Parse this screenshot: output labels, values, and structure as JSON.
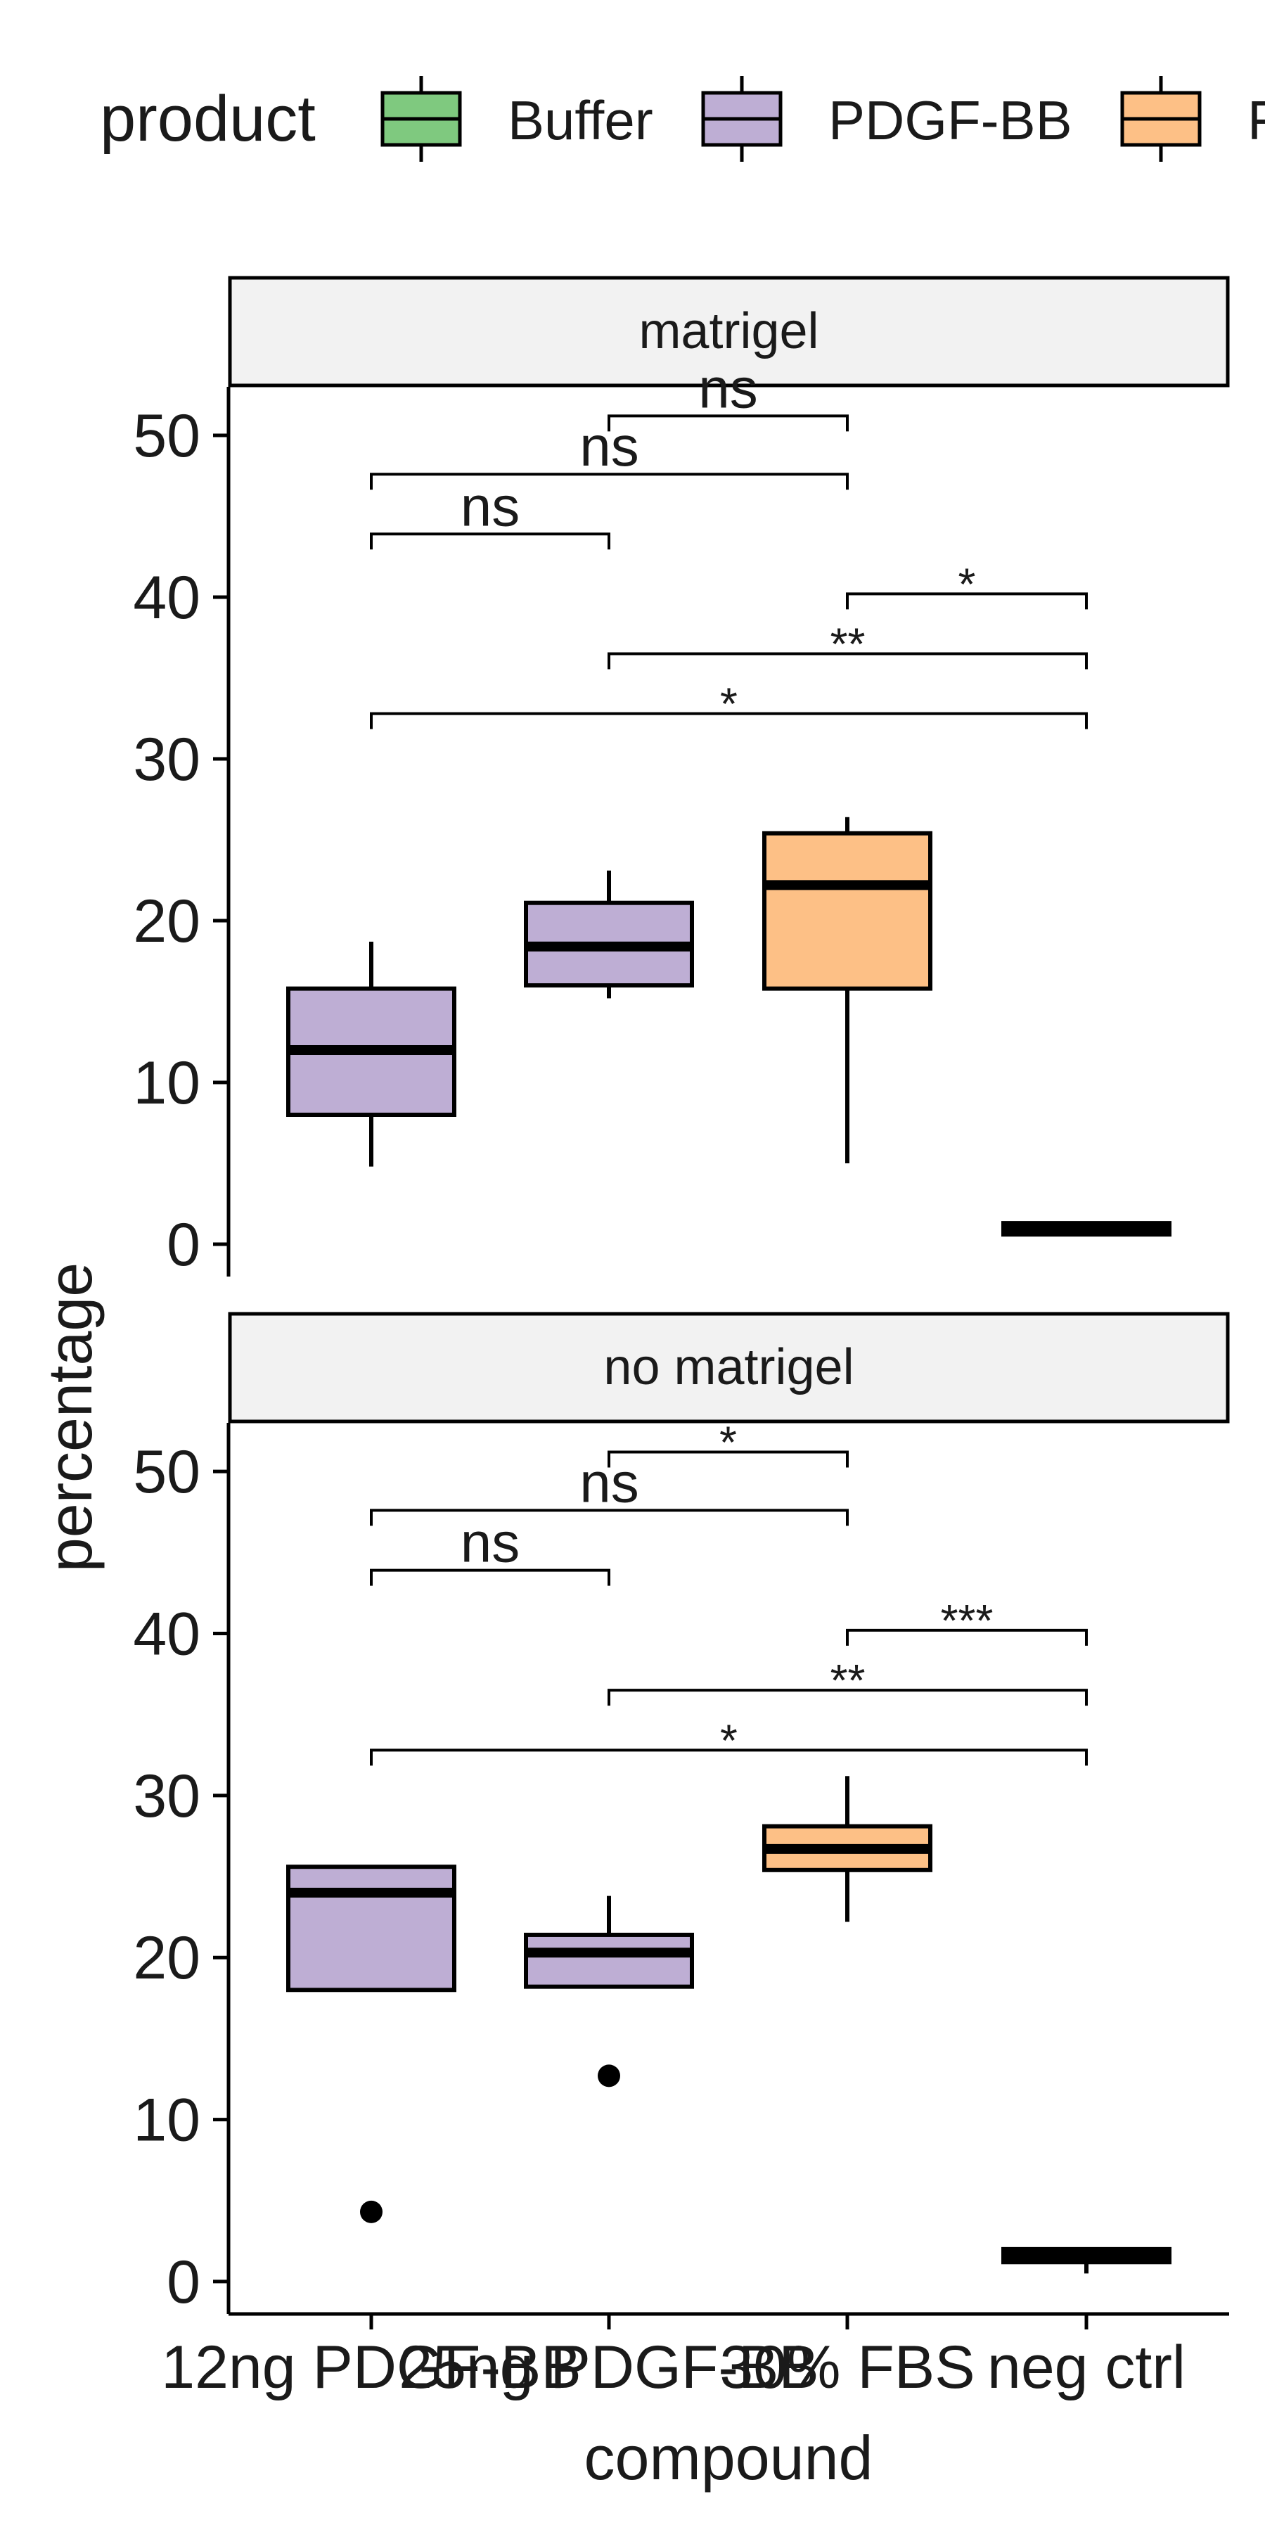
{
  "chart_data": {
    "type": "box",
    "xlabel": "compound",
    "ylabel": "percentage",
    "legend": {
      "title": "product",
      "position": "top",
      "entries": [
        {
          "name": "Buffer",
          "color": "#7fc97f"
        },
        {
          "name": "PDGF-BB",
          "color": "#beaed4"
        },
        {
          "name": "F",
          "color": "#fdc086"
        }
      ]
    },
    "categories": [
      "12ng PDGF-BB",
      "25ng PDGF-BB",
      "30% FBS",
      "neg ctrl"
    ],
    "ylim": [
      -2,
      53
    ],
    "yticks": [
      0,
      10,
      20,
      30,
      40,
      50
    ],
    "colors": {
      "box_stroke": "#000000",
      "strip_fill": "#f2f2f2",
      "neg_ctrl": "#7fc97f",
      "pdgf": "#beaed4",
      "fbs": "#fdc086"
    },
    "panels": [
      {
        "strip_label": "matrigel",
        "boxes": [
          {
            "category": "12ng PDGF-BB",
            "product": "PDGF-BB",
            "lower_whisker": 4.8,
            "q1": 8.0,
            "median": 12.0,
            "q3": 15.8,
            "upper_whisker": 18.7,
            "outliers": []
          },
          {
            "category": "25ng PDGF-BB",
            "product": "PDGF-BB",
            "lower_whisker": 15.2,
            "q1": 16.0,
            "median": 18.4,
            "q3": 21.1,
            "upper_whisker": 23.1,
            "outliers": []
          },
          {
            "category": "30% FBS",
            "product": "F",
            "lower_whisker": 5.0,
            "q1": 15.8,
            "median": 22.2,
            "q3": 25.4,
            "upper_whisker": 26.4,
            "outliers": []
          },
          {
            "category": "neg ctrl",
            "product": "Buffer",
            "lower_whisker": 0.6,
            "q1": 0.6,
            "median": 1.0,
            "q3": 1.3,
            "upper_whisker": 1.4,
            "outliers": []
          }
        ],
        "comparisons": [
          {
            "from": "12ng PDGF-BB",
            "to": "neg ctrl",
            "y": 32.8,
            "label": "*"
          },
          {
            "from": "25ng PDGF-BB",
            "to": "neg ctrl",
            "y": 36.5,
            "label": "**"
          },
          {
            "from": "30% FBS",
            "to": "neg ctrl",
            "y": 40.2,
            "label": "*"
          },
          {
            "from": "12ng PDGF-BB",
            "to": "25ng PDGF-BB",
            "y": 43.9,
            "label": "ns"
          },
          {
            "from": "12ng PDGF-BB",
            "to": "30% FBS",
            "y": 47.6,
            "label": "ns"
          },
          {
            "from": "25ng PDGF-BB",
            "to": "30% FBS",
            "y": 51.2,
            "label": "ns"
          }
        ]
      },
      {
        "strip_label": "no matrigel",
        "boxes": [
          {
            "category": "12ng PDGF-BB",
            "product": "PDGF-BB",
            "lower_whisker": 18.0,
            "q1": 18.0,
            "median": 24.0,
            "q3": 25.6,
            "upper_whisker": 25.6,
            "outliers": [
              4.3
            ]
          },
          {
            "category": "25ng PDGF-BB",
            "product": "PDGF-BB",
            "lower_whisker": 18.2,
            "q1": 18.2,
            "median": 20.3,
            "q3": 21.4,
            "upper_whisker": 23.8,
            "outliers": [
              12.7
            ]
          },
          {
            "category": "30% FBS",
            "product": "F",
            "lower_whisker": 22.2,
            "q1": 25.4,
            "median": 26.7,
            "q3": 28.1,
            "upper_whisker": 31.2,
            "outliers": []
          },
          {
            "category": "neg ctrl",
            "product": "Buffer",
            "lower_whisker": 0.5,
            "q1": 1.2,
            "median": 1.6,
            "q3": 2.0,
            "upper_whisker": 2.0,
            "outliers": []
          }
        ],
        "comparisons": [
          {
            "from": "12ng PDGF-BB",
            "to": "neg ctrl",
            "y": 32.8,
            "label": "*"
          },
          {
            "from": "25ng PDGF-BB",
            "to": "neg ctrl",
            "y": 36.5,
            "label": "**"
          },
          {
            "from": "30% FBS",
            "to": "neg ctrl",
            "y": 40.2,
            "label": "***"
          },
          {
            "from": "12ng PDGF-BB",
            "to": "25ng PDGF-BB",
            "y": 43.9,
            "label": "ns"
          },
          {
            "from": "12ng PDGF-BB",
            "to": "30% FBS",
            "y": 47.6,
            "label": "ns"
          },
          {
            "from": "25ng PDGF-BB",
            "to": "30% FBS",
            "y": 51.2,
            "label": "*"
          }
        ]
      }
    ]
  }
}
